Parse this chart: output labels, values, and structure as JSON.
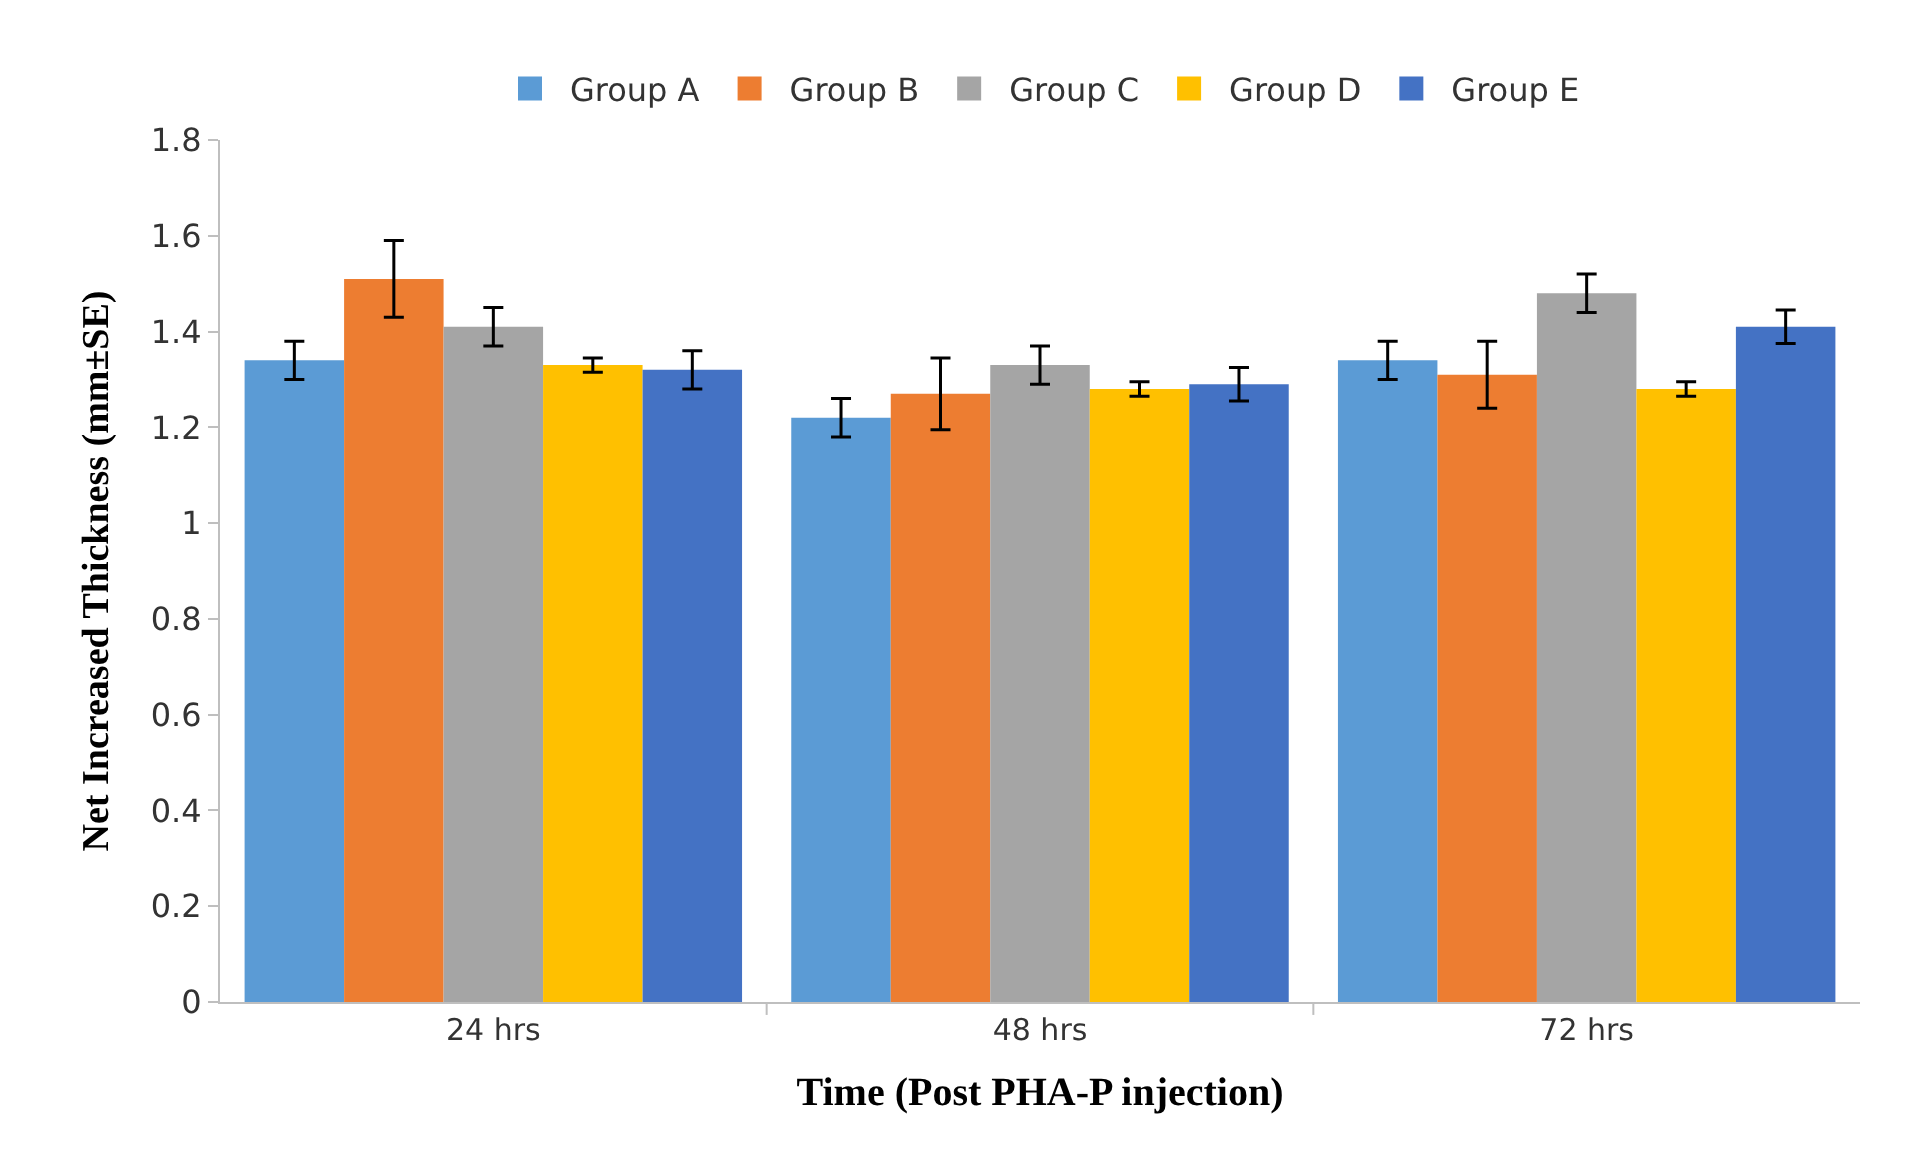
{
  "chart_data": {
    "type": "bar",
    "xlabel": "Time (Post PHA-P injection)",
    "ylabel": "Net Increased Thickness (mm±SE)",
    "categories": [
      "24 hrs",
      "48 hrs",
      "72 hrs"
    ],
    "series": [
      {
        "name": "Group A",
        "color": "#5b9bd5",
        "values": [
          1.34,
          1.22,
          1.34
        ],
        "errors": [
          0.04,
          0.04,
          0.04
        ]
      },
      {
        "name": "Group B",
        "color": "#ed7d31",
        "values": [
          1.51,
          1.27,
          1.31
        ],
        "errors": [
          0.08,
          0.075,
          0.07
        ]
      },
      {
        "name": "Group C",
        "color": "#a5a5a5",
        "values": [
          1.41,
          1.33,
          1.48
        ],
        "errors": [
          0.04,
          0.04,
          0.04
        ]
      },
      {
        "name": "Group D",
        "color": "#ffc000",
        "values": [
          1.33,
          1.28,
          1.28
        ],
        "errors": [
          0.015,
          0.015,
          0.015
        ]
      },
      {
        "name": "Group E",
        "color": "#4472c4",
        "values": [
          1.32,
          1.29,
          1.41
        ],
        "errors": [
          0.04,
          0.035,
          0.035
        ]
      }
    ],
    "ylim": [
      0,
      1.8
    ],
    "yticks": [
      0,
      {
        "value": 0.2,
        "label": "0.2"
      },
      {
        "value": 0.4,
        "label": "0.4"
      },
      {
        "value": 0.6,
        "label": "0.6"
      },
      {
        "value": 0.8,
        "label": "0.8"
      },
      1,
      {
        "value": 1.2,
        "label": "1.2"
      },
      {
        "value": 1.4,
        "label": "1.4"
      },
      {
        "value": 1.6,
        "label": "1.6"
      },
      {
        "value": 1.8,
        "label": "1.8"
      }
    ],
    "grid": false,
    "legend": "top"
  }
}
